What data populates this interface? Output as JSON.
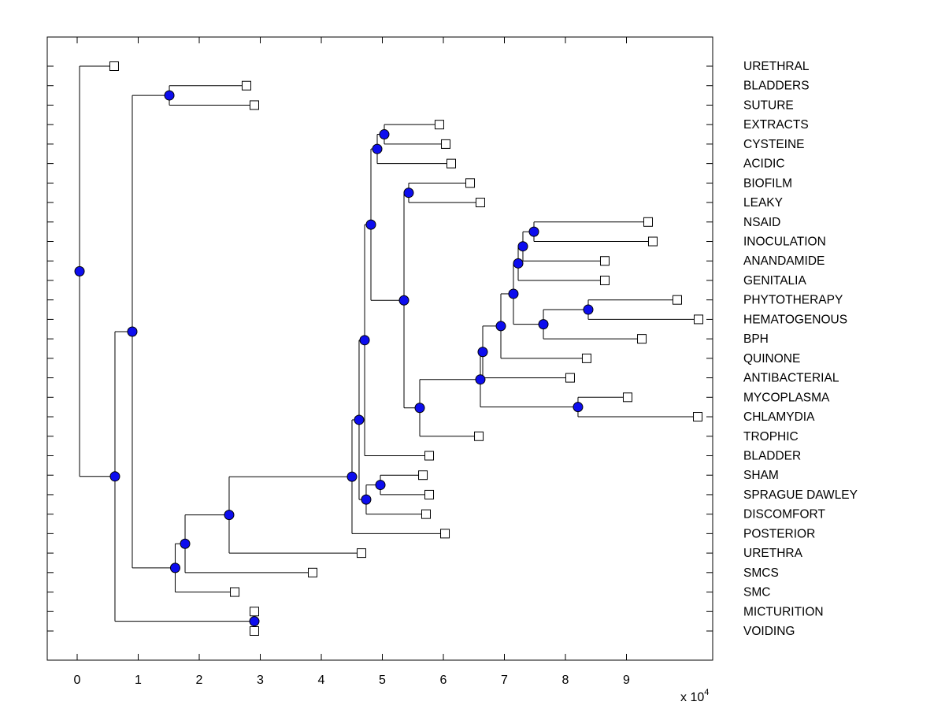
{
  "figure": {
    "background": "#ffffff",
    "line_color": "#000000",
    "node_marker_fill": "#0d0dee",
    "node_marker_edge": "#000000",
    "leaf_marker_fill": "#ffffff",
    "leaf_marker_edge": "#000000"
  },
  "chart_data": {
    "type": "dendrogram",
    "orientation": "left-to-right",
    "title": "",
    "xlabel": "",
    "ylabel": "",
    "x_axis": {
      "ticks": [
        "0",
        "1",
        "2",
        "3",
        "4",
        "5",
        "6",
        "7",
        "8",
        "9"
      ],
      "tick_values": [
        0,
        1,
        2,
        3,
        4,
        5,
        6,
        7,
        8,
        9
      ],
      "multiplier_prefix": "x 10",
      "multiplier_exponent": "4",
      "xlim_units_e4": [
        -0.49,
        10.41
      ],
      "grid": false
    },
    "units_note": "all x values in units of 10^4 (branch distance)",
    "leaves": [
      {
        "id": "urethral",
        "label": "URETHRAL",
        "x": 0.606
      },
      {
        "id": "bladders",
        "label": "BLADDERS",
        "x": 2.774
      },
      {
        "id": "suture",
        "label": "SUTURE",
        "x": 2.903
      },
      {
        "id": "extracts",
        "label": "EXTRACTS",
        "x": 5.935
      },
      {
        "id": "cysteine",
        "label": "CYSTEINE",
        "x": 6.039
      },
      {
        "id": "acidic",
        "label": "ACIDIC",
        "x": 6.129
      },
      {
        "id": "biofilm",
        "label": "BIOFILM",
        "x": 6.439
      },
      {
        "id": "leaky",
        "label": "LEAKY",
        "x": 6.606
      },
      {
        "id": "nsaid",
        "label": "NSAID",
        "x": 9.355
      },
      {
        "id": "inoculation",
        "label": "INOCULATION",
        "x": 9.432
      },
      {
        "id": "anandamide",
        "label": "ANANDAMIDE",
        "x": 8.645
      },
      {
        "id": "genitalia",
        "label": "GENITALIA",
        "x": 8.645
      },
      {
        "id": "phytotherapy",
        "label": "PHYTOTHERAPY",
        "x": 9.832
      },
      {
        "id": "hematogenous",
        "label": "HEMATOGENOUS",
        "x": 10.181
      },
      {
        "id": "bph",
        "label": "BPH",
        "x": 9.252
      },
      {
        "id": "quinone",
        "label": "QUINONE",
        "x": 8.348
      },
      {
        "id": "antibacterial",
        "label": "ANTIBACTERIAL",
        "x": 8.077
      },
      {
        "id": "mycoplasma",
        "label": "MYCOPLASMA",
        "x": 9.019
      },
      {
        "id": "chlamydia",
        "label": "CHLAMYDIA",
        "x": 10.168
      },
      {
        "id": "trophic",
        "label": "TROPHIC",
        "x": 6.581
      },
      {
        "id": "bladder",
        "label": "BLADDER",
        "x": 5.768
      },
      {
        "id": "sham",
        "label": "SHAM",
        "x": 5.665
      },
      {
        "id": "sprague-dawley",
        "label": "SPRAGUE DAWLEY",
        "x": 5.768
      },
      {
        "id": "discomfort",
        "label": "DISCOMFORT",
        "x": 5.716
      },
      {
        "id": "posterior",
        "label": "POSTERIOR",
        "x": 6.026
      },
      {
        "id": "urethra",
        "label": "URETHRA",
        "x": 4.658
      },
      {
        "id": "smcs",
        "label": "SMCS",
        "x": 3.858
      },
      {
        "id": "smc",
        "label": "SMC",
        "x": 2.581
      },
      {
        "id": "micturition",
        "label": "MICTURITION",
        "x": 2.903
      },
      {
        "id": "voiding",
        "label": "VOIDING",
        "x": 2.903
      }
    ],
    "inner_nodes": [
      {
        "id": "i-bs",
        "x": 1.51,
        "children": [
          "bladders",
          "suture"
        ]
      },
      {
        "id": "i-ec",
        "x": 5.032,
        "children": [
          "extracts",
          "cysteine"
        ]
      },
      {
        "id": "i-eca",
        "x": 4.916,
        "children": [
          "i-ec",
          "acidic"
        ]
      },
      {
        "id": "i-bl",
        "x": 5.432,
        "children": [
          "biofilm",
          "leaky"
        ]
      },
      {
        "id": "i-ni",
        "x": 7.484,
        "children": [
          "nsaid",
          "inoculation"
        ]
      },
      {
        "id": "i-nia",
        "x": 7.303,
        "children": [
          "i-ni",
          "anandamide"
        ]
      },
      {
        "id": "i-niag",
        "x": 7.226,
        "children": [
          "i-nia",
          "genitalia"
        ]
      },
      {
        "id": "i-ph",
        "x": 8.374,
        "children": [
          "phytotherapy",
          "hematogenous"
        ]
      },
      {
        "id": "i-phb",
        "x": 7.639,
        "children": [
          "i-ph",
          "bph"
        ]
      },
      {
        "id": "i-top",
        "x": 7.148,
        "children": [
          "i-niag",
          "i-phb"
        ]
      },
      {
        "id": "i-q",
        "x": 6.942,
        "children": [
          "i-top",
          "quinone"
        ]
      },
      {
        "id": "i-ab",
        "x": 6.645,
        "children": [
          "i-q",
          "antibacterial"
        ]
      },
      {
        "id": "i-mc",
        "x": 8.206,
        "children": [
          "mycoplasma",
          "chlamydia"
        ]
      },
      {
        "id": "i-abmc",
        "x": 6.606,
        "children": [
          "i-ab",
          "i-mc"
        ]
      },
      {
        "id": "i-t",
        "x": 5.613,
        "children": [
          "i-abmc",
          "trophic"
        ]
      },
      {
        "id": "i-blt",
        "x": 5.355,
        "children": [
          "i-bl",
          "i-t"
        ]
      },
      {
        "id": "i-mid",
        "x": 4.813,
        "children": [
          "i-eca",
          "i-blt"
        ]
      },
      {
        "id": "i-midb",
        "x": 4.71,
        "children": [
          "i-mid",
          "bladder"
        ]
      },
      {
        "id": "i-ss",
        "x": 4.968,
        "children": [
          "sham",
          "sprague-dawley"
        ]
      },
      {
        "id": "i-ssd",
        "x": 4.735,
        "children": [
          "i-ss",
          "discomfort"
        ]
      },
      {
        "id": "i-low",
        "x": 4.619,
        "children": [
          "i-midb",
          "i-ssd"
        ]
      },
      {
        "id": "i-lowp",
        "x": 4.503,
        "children": [
          "i-low",
          "posterior"
        ]
      },
      {
        "id": "i-u1",
        "x": 2.49,
        "children": [
          "i-lowp",
          "urethra"
        ]
      },
      {
        "id": "i-u2",
        "x": 1.768,
        "children": [
          "i-u1",
          "smcs"
        ]
      },
      {
        "id": "i-u3",
        "x": 1.606,
        "children": [
          "i-u2",
          "smc"
        ]
      },
      {
        "id": "i-left",
        "x": 0.903,
        "children": [
          "i-bs",
          "i-u3"
        ]
      },
      {
        "id": "i-mv",
        "x": 2.903,
        "children": [
          "micturition",
          "voiding"
        ]
      },
      {
        "id": "i-m0",
        "x": 0.619,
        "children": [
          "i-left",
          "i-mv"
        ]
      },
      {
        "id": "i-root",
        "x": 0.039,
        "children": [
          "urethral",
          "i-m0"
        ]
      }
    ],
    "root": "i-root"
  }
}
